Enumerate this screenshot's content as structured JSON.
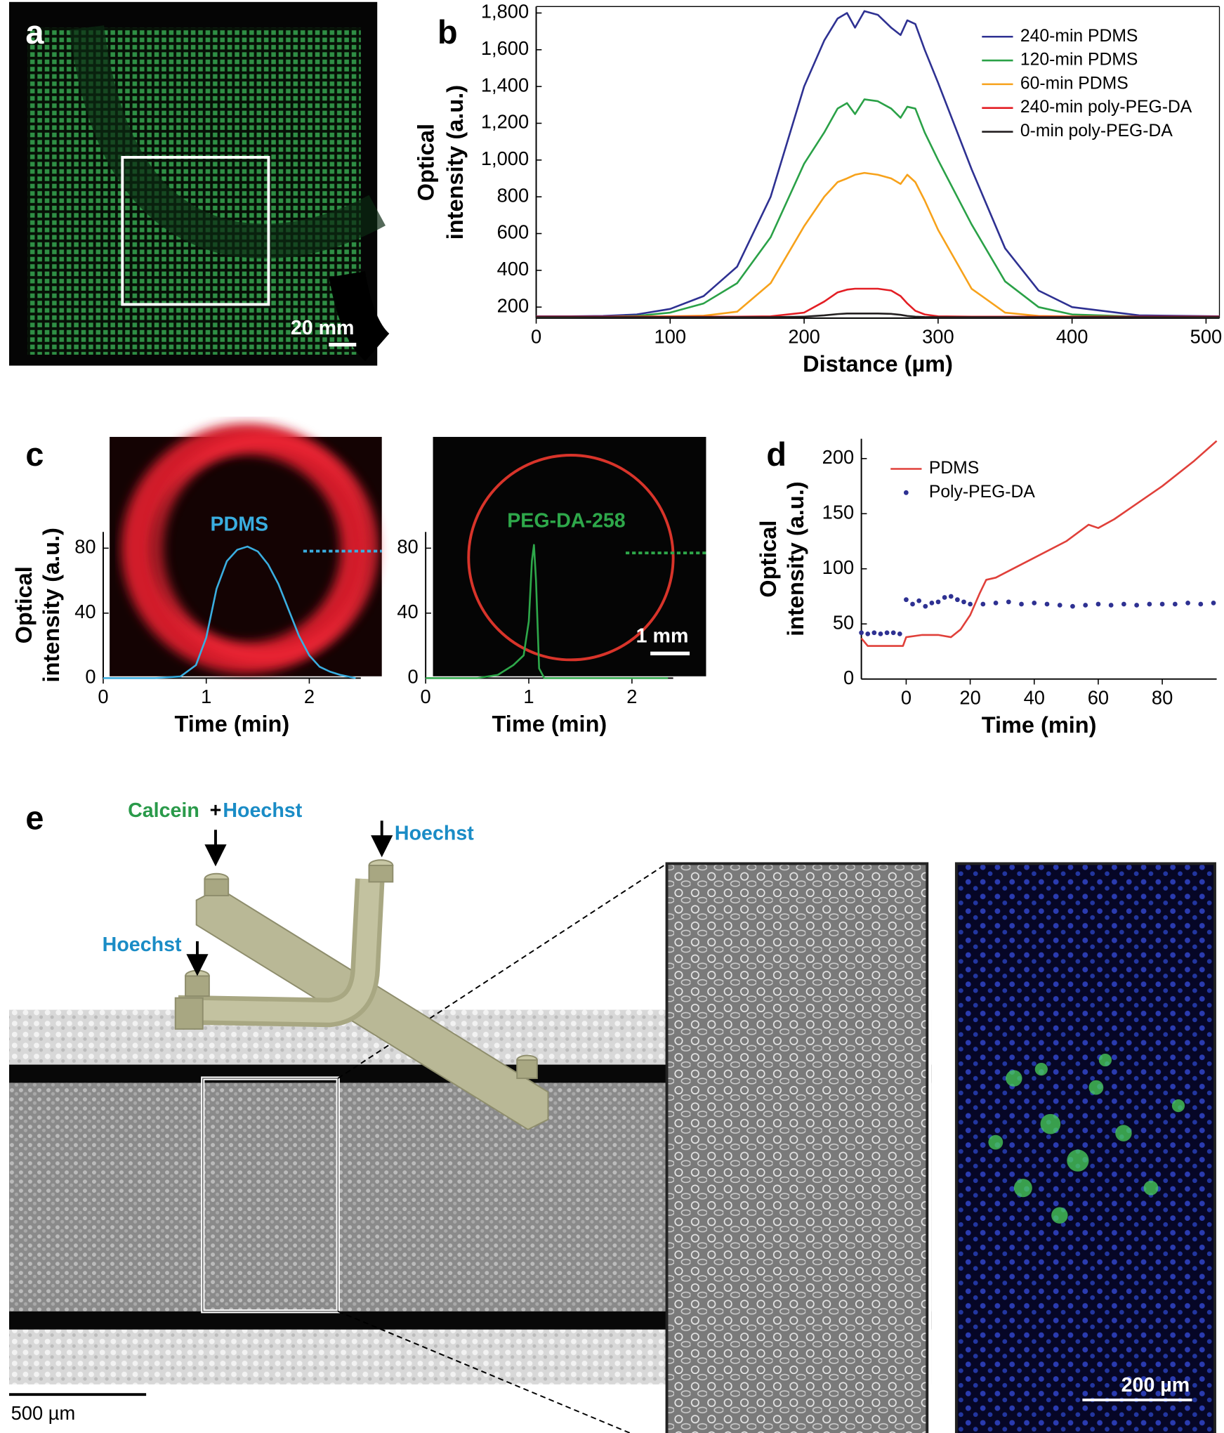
{
  "panel_a": {
    "label": "a",
    "scale_bar": "20 mm"
  },
  "panel_c": {
    "label": "c",
    "scale_bar": "1 mm"
  },
  "panel_e": {
    "label": "e",
    "calcein": "Calcein",
    "plus": "+",
    "hoechst_labels": [
      "Hoechst",
      "Hoechst",
      "Hoechst"
    ],
    "scale_bars": [
      "500 µm",
      "200 µm"
    ]
  },
  "chart_data": [
    {
      "type": "line",
      "panel_label": "b",
      "x_label": "Distance (µm)",
      "y_label": [
        "Optical",
        "intensity (a.u.)"
      ],
      "x": [
        0,
        25,
        50,
        75,
        100,
        125,
        150,
        175,
        200,
        215,
        225,
        232,
        238,
        245,
        255,
        265,
        272,
        277,
        283,
        290,
        300,
        325,
        350,
        375,
        400,
        450,
        510
      ],
      "xlim": [
        0,
        510
      ],
      "xticks": [
        0,
        100,
        200,
        300,
        400,
        500
      ],
      "ylim": [
        140,
        1835
      ],
      "yticks": [
        200,
        400,
        600,
        800,
        {
          "value": 1000,
          "label": "1,000"
        },
        {
          "value": 1200,
          "label": "1,200"
        },
        {
          "value": 1400,
          "label": "1,400"
        },
        {
          "value": 1600,
          "label": "1,600"
        },
        {
          "value": 1800,
          "label": "1,800"
        }
      ],
      "frame": true,
      "legend": "upper right",
      "series": [
        {
          "name": "240-min PDMS",
          "color": "#2e3192",
          "values": [
            150,
            150,
            152,
            160,
            190,
            260,
            420,
            800,
            1400,
            1650,
            1770,
            1800,
            1720,
            1810,
            1790,
            1720,
            1680,
            1760,
            1740,
            1600,
            1420,
            950,
            520,
            290,
            200,
            155,
            150
          ]
        },
        {
          "name": "120-min PDMS",
          "color": "#2aa147",
          "values": [
            145,
            145,
            147,
            152,
            170,
            220,
            330,
            580,
            980,
            1150,
            1280,
            1310,
            1250,
            1330,
            1320,
            1280,
            1230,
            1290,
            1280,
            1150,
            1000,
            650,
            340,
            200,
            160,
            148,
            145
          ]
        },
        {
          "name": "60-min PDMS",
          "color": "#f7a21b",
          "values": [
            148,
            148,
            148,
            149,
            150,
            153,
            175,
            330,
            640,
            800,
            880,
            900,
            920,
            930,
            920,
            900,
            870,
            920,
            880,
            780,
            620,
            300,
            170,
            152,
            149,
            148,
            148
          ]
        },
        {
          "name": "240-min poly-PEG-DA",
          "color": "#e31e24",
          "values": [
            148,
            148,
            148,
            148,
            148,
            148,
            148,
            150,
            170,
            230,
            280,
            295,
            300,
            300,
            300,
            290,
            260,
            220,
            180,
            160,
            150,
            148,
            148,
            148,
            148,
            148,
            148
          ]
        },
        {
          "name": "0-min poly-PEG-DA",
          "color": "#231f20",
          "values": [
            145,
            145,
            145,
            145,
            145,
            145,
            145,
            145,
            148,
            155,
            162,
            165,
            165,
            165,
            165,
            163,
            158,
            152,
            148,
            146,
            145,
            145,
            145,
            145,
            145,
            145,
            145
          ]
        }
      ]
    },
    {
      "type": "line",
      "x_label": "Time (min)",
      "y_label": [
        "Optical",
        "intensity (a.u.)"
      ],
      "annotation": "PDMS",
      "color": "#3aaee0",
      "x": [
        0,
        0.5,
        0.75,
        0.9,
        1.0,
        1.1,
        1.2,
        1.3,
        1.4,
        1.5,
        1.6,
        1.7,
        1.8,
        1.9,
        2.0,
        2.1,
        2.2,
        2.3,
        2.45
      ],
      "values": [
        0,
        0,
        1,
        8,
        25,
        55,
        72,
        79,
        81,
        78,
        70,
        58,
        42,
        26,
        14,
        7,
        4,
        2,
        0
      ],
      "xlim": [
        0,
        2.5
      ],
      "xticks": [
        0,
        1,
        2
      ],
      "ylim": [
        0,
        90
      ],
      "yticks": [
        0,
        40,
        80
      ]
    },
    {
      "type": "line",
      "x_label": "Time (min)",
      "annotation": "PEG-DA-258",
      "color": "#2ea84a",
      "x": [
        0,
        0.5,
        0.7,
        0.85,
        0.95,
        1.0,
        1.03,
        1.05,
        1.07,
        1.1,
        1.15,
        1.3,
        2.35
      ],
      "values": [
        0,
        0,
        2,
        8,
        14,
        35,
        72,
        82,
        60,
        6,
        0,
        0,
        0
      ],
      "xlim": [
        0,
        2.4
      ],
      "xticks": [
        0,
        1,
        2
      ],
      "ylim": [
        0,
        90
      ],
      "yticks": [
        0,
        40,
        80
      ]
    },
    {
      "type": "line",
      "panel_label": "d",
      "x_label": "Time (min)",
      "y_label": [
        "Optical",
        "intensity (a.u.)"
      ],
      "xlim": [
        -14,
        97
      ],
      "xticks": [
        0,
        20,
        40,
        60,
        80
      ],
      "ylim": [
        0,
        218
      ],
      "yticks": [
        0,
        50,
        100,
        150,
        200
      ],
      "legend": "upper left",
      "series": [
        {
          "name": "PDMS",
          "color": "#e0403a",
          "style": "line",
          "x": [
            -14,
            -12,
            -5,
            -1,
            0,
            5,
            10,
            14,
            17,
            20,
            23,
            25,
            28,
            30,
            40,
            50,
            57,
            60,
            65,
            70,
            80,
            90,
            97
          ],
          "values": [
            37,
            30,
            30,
            30,
            38,
            40,
            40,
            38,
            45,
            58,
            78,
            90,
            92,
            95,
            110,
            125,
            140,
            137,
            145,
            155,
            175,
            198,
            216
          ]
        },
        {
          "name": "Poly-PEG-DA",
          "color": "#2e3192",
          "style": "markers",
          "x": [
            -14,
            -12,
            -10,
            -8,
            -6,
            -4,
            -2,
            0,
            2,
            4,
            6,
            8,
            10,
            12,
            14,
            16,
            18,
            20,
            24,
            28,
            32,
            36,
            40,
            44,
            48,
            52,
            56,
            60,
            64,
            68,
            72,
            76,
            80,
            84,
            88,
            92,
            96
          ],
          "values": [
            42,
            41,
            42,
            41,
            42,
            42,
            41,
            72,
            68,
            71,
            66,
            69,
            70,
            74,
            75,
            72,
            70,
            68,
            68,
            69,
            70,
            68,
            69,
            68,
            67,
            66,
            67,
            68,
            67,
            68,
            67,
            68,
            68,
            68,
            69,
            68,
            69
          ]
        }
      ]
    }
  ]
}
